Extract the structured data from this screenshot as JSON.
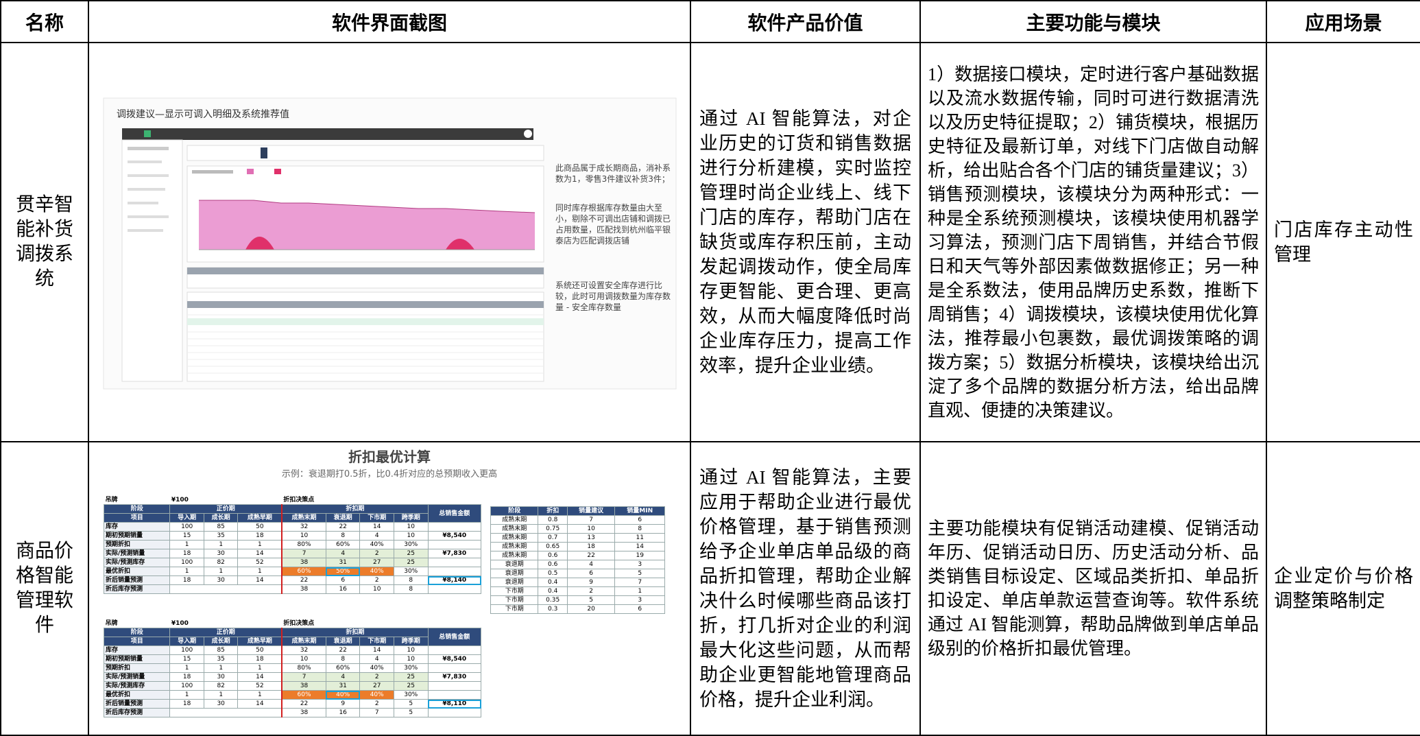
{
  "table": {
    "headers": [
      "名称",
      "软件界面截图",
      "软件产品价值",
      "主要功能与模块",
      "应用场景"
    ],
    "rows": [
      {
        "name": "贯辛智能补货调拨系统",
        "value": "通过 AI 智能算法，对企业历史的订货和销售数据进行分析建模，实时监控管理时尚企业线上、线下门店的库存，帮助门店在缺货或库存积压前，主动发起调拨动作，使全局库存更智能、更合理、更高效，从而大幅度降低时尚企业库存压力，提高工作效率，提升企业业绩。",
        "functions": "1）数据接口模块，定时进行客户基础数据以及流水数据传输，同时可进行数据清洗以及历史特征提取；2）铺货模块，根据历史特征及最新订单，对线下门店做自动解析，给出贴合各个门店的铺货量建议；3）销售预测模块，该模块分为两种形式：一种是全系统预测模块，该模块使用机器学习算法，预测门店下周销售，并结合节假日和天气等外部因素做数据修正；另一种是全系数法，使用品牌历史系数，推断下周销售；4）调拨模块，该模块使用优化算法，推荐最小包裹数，最优调拨策略的调拨方案；5）数据分析模块，该模块给出沉淀了多个品牌的数据分析方法，给出品牌直观、便捷的决策建议。",
        "scenario": "门店库存主动性管理"
      },
      {
        "name": "商品价格智能管理软件",
        "value": "通过 AI 智能算法，主要应用于帮助企业进行最优价格管理，基于销售预测给予企业单店单品级的商品折扣管理，帮助企业解决什么时候哪些商品该打折，打几折对企业的利润最大化这些问题，从而帮助企业更智能地管理商品价格，提升企业利润。",
        "functions": "主要功能模块有促销活动建模、促销活动年历、促销活动日历、历史活动分析、品类销售目标设定、区域品类折扣、单品折扣设定、单店单款运营查询等。软件系统通过 AI 智能测算，帮助品牌做到单店单品级别的价格折扣最优管理。",
        "scenario": "企业定价与价格调整策略制定"
      }
    ]
  },
  "screenshot_1": {
    "title": "调拨建议—显示可调入明细及系统推荐值",
    "notes": [
      "此商品属于成长期商品，消补系数为1，零售3件建议补货3件；",
      "同时库存根据库存数量由大至小，剔除不可调出店铺和调拨已占用数量，匹配找到杭州临平银泰店为匹配调拨店铺",
      "系统还可设置安全库存进行比较，此时可用调拨数量为库存数量 - 安全库存数量"
    ]
  },
  "screenshot_2": {
    "title": "折扣最优计算",
    "subtitle": "示例：衰退期打0.5折，比0.4折对应的总预期收入更高",
    "tag_label": "吊牌",
    "tag_price": "¥100",
    "decision_point": "折扣决策点",
    "stage_label": "阶段",
    "item_label": "项目",
    "regular_period": "正价期",
    "discount_period": "折扣期",
    "total_label": "总销售金额",
    "stages": [
      "导入期",
      "成长期",
      "成熟早期",
      "成熟末期",
      "衰退期",
      "下市期",
      "跨季期"
    ],
    "tables": [
      {
        "rows": [
          {
            "label": "库存",
            "regular": [
              100,
              85,
              50
            ],
            "discount": [
              32,
              22,
              14,
              10
            ]
          },
          {
            "label": "期初预期销量",
            "regular": [
              15,
              35,
              18
            ],
            "discount": [
              10,
              8,
              4,
              10
            ],
            "total": "¥8,540"
          },
          {
            "label": "预期折扣",
            "regular": [
              1,
              1,
              1
            ],
            "discount": [
              "80%",
              "60%",
              "40%",
              "30%"
            ]
          },
          {
            "label": "实际/预测销量",
            "regular": [
              18,
              30,
              14
            ],
            "discount": [
              7,
              4,
              2,
              25
            ],
            "total": "¥7,830"
          },
          {
            "label": "实际/预测库存",
            "regular": [
              100,
              82,
              52
            ],
            "discount": [
              38,
              31,
              27,
              25
            ]
          },
          {
            "label": "最优折扣",
            "regular": [
              1,
              1,
              1
            ],
            "discount": [
              "60%",
              "50%",
              "40%",
              "30%"
            ]
          },
          {
            "label": "折后销量预测",
            "regular": [
              18,
              30,
              14
            ],
            "discount": [
              22,
              6,
              2,
              8
            ],
            "total": "¥8,140"
          },
          {
            "label": "折后库存预测",
            "discount": [
              38,
              16,
              10,
              8
            ]
          }
        ]
      },
      {
        "rows": [
          {
            "label": "库存",
            "regular": [
              100,
              85,
              50
            ],
            "discount": [
              32,
              22,
              14,
              10
            ]
          },
          {
            "label": "期初预期销量",
            "regular": [
              15,
              35,
              18
            ],
            "discount": [
              10,
              8,
              4,
              10
            ],
            "total": "¥8,540"
          },
          {
            "label": "预期折扣",
            "regular": [
              1,
              1,
              1
            ],
            "discount": [
              "80%",
              "60%",
              "40%",
              "30%"
            ]
          },
          {
            "label": "实际/预测销量",
            "regular": [
              18,
              30,
              14
            ],
            "discount": [
              7,
              4,
              2,
              25
            ],
            "total": "¥7,830"
          },
          {
            "label": "实际/预测库存",
            "regular": [
              100,
              82,
              52
            ],
            "discount": [
              38,
              31,
              27,
              25
            ]
          },
          {
            "label": "最优折扣",
            "regular": [
              1,
              1,
              1
            ],
            "discount": [
              "60%",
              "40%",
              "40%",
              "30%"
            ]
          },
          {
            "label": "折后销量预测",
            "regular": [
              18,
              30,
              14
            ],
            "discount": [
              22,
              9,
              2,
              5
            ],
            "total": "¥8,110"
          },
          {
            "label": "折后库存预测",
            "discount": [
              38,
              16,
              7,
              5
            ]
          }
        ]
      }
    ],
    "lookup": {
      "headers": [
        "阶段",
        "折扣",
        "销量建议",
        "销量MIN"
      ],
      "rows": [
        [
          "成熟末期",
          0.8,
          7,
          6
        ],
        [
          "成熟末期",
          0.75,
          10,
          8
        ],
        [
          "成熟末期",
          0.7,
          13,
          11
        ],
        [
          "成熟末期",
          0.65,
          18,
          14
        ],
        [
          "成熟末期",
          0.6,
          22,
          19
        ],
        [
          "衰退期",
          0.6,
          4,
          3
        ],
        [
          "衰退期",
          0.5,
          6,
          5
        ],
        [
          "衰退期",
          0.4,
          9,
          7
        ],
        [
          "下市期",
          0.4,
          2,
          1
        ],
        [
          "下市期",
          0.35,
          5,
          3
        ],
        [
          "下市期",
          0.3,
          20,
          6
        ]
      ]
    }
  }
}
